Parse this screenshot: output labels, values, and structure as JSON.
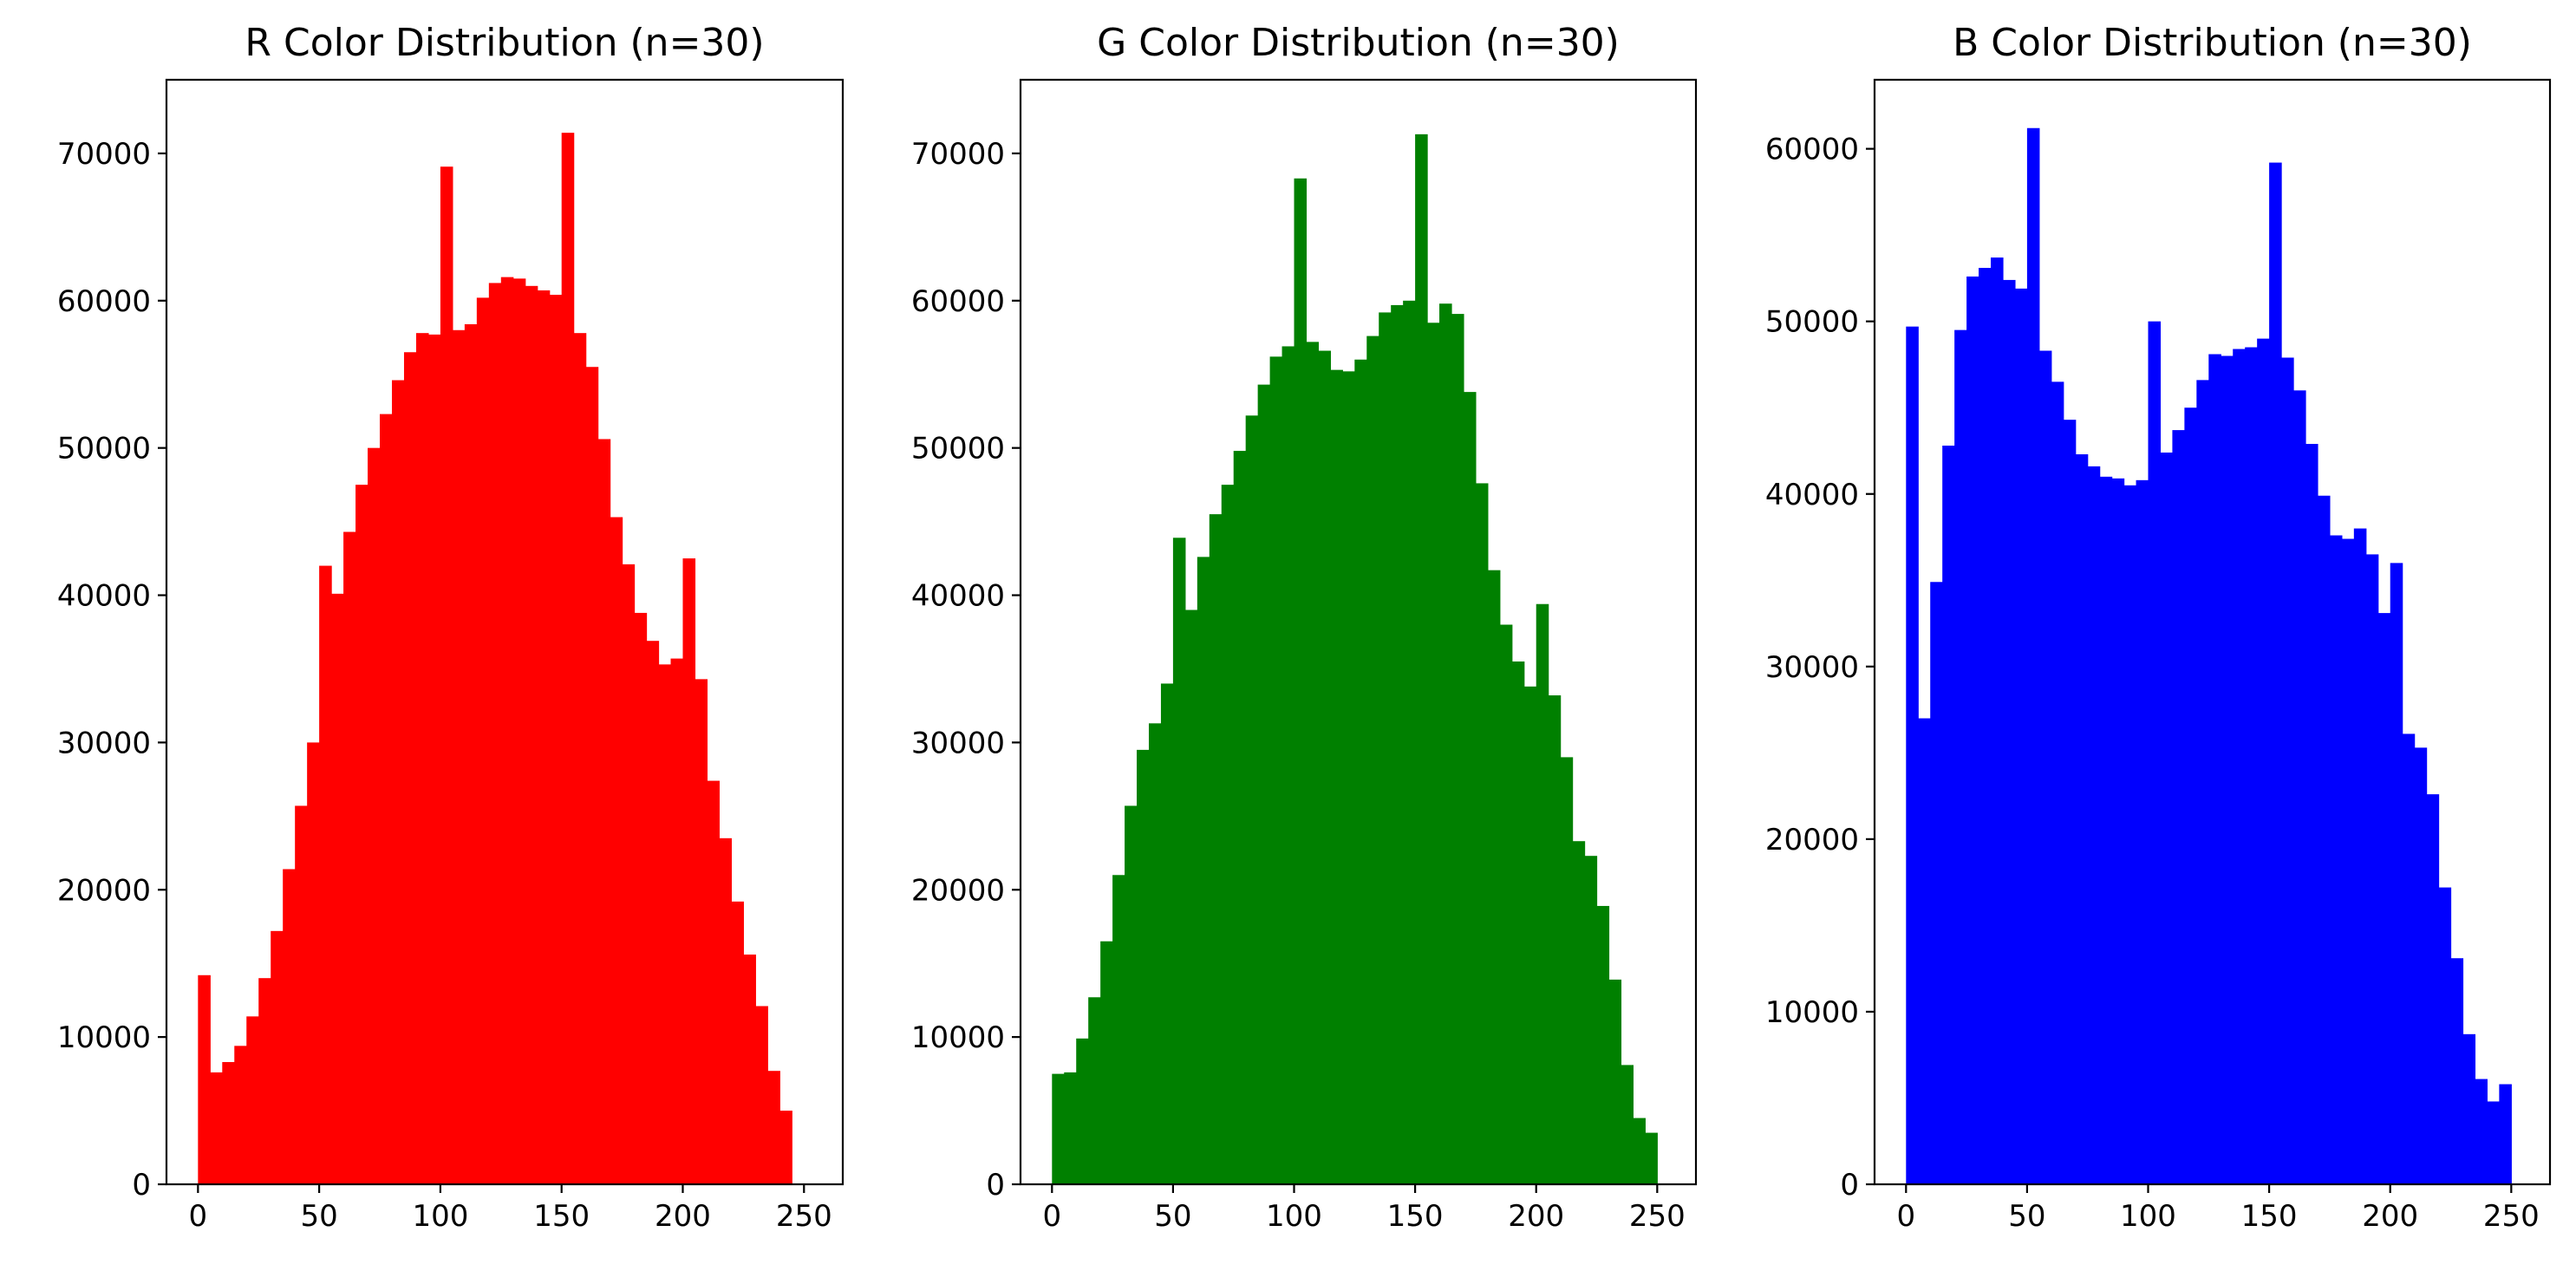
{
  "chart_data": [
    {
      "type": "bar",
      "title": "R Color Distribution (n=30)",
      "color": "#ff0000",
      "xlim": [
        -13,
        266
      ],
      "ylim": [
        0,
        75000
      ],
      "xticks": [
        0,
        50,
        100,
        150,
        200,
        250
      ],
      "yticks": [
        0,
        10000,
        20000,
        30000,
        40000,
        50000,
        60000,
        70000
      ],
      "bin_start": 0,
      "bin_width": 5,
      "values": [
        14200,
        7600,
        8300,
        9400,
        11400,
        14000,
        17200,
        21400,
        25700,
        30000,
        42000,
        40100,
        44300,
        47500,
        50000,
        52300,
        54600,
        56500,
        57800,
        57700,
        69100,
        58000,
        58400,
        60200,
        61200,
        61600,
        61500,
        61000,
        60700,
        60400,
        71400,
        57800,
        55500,
        50600,
        45300,
        42100,
        38800,
        36900,
        35300,
        35700,
        42500,
        34300,
        27400,
        23500,
        19200,
        15600,
        12100,
        7700,
        5000
      ]
    },
    {
      "type": "bar",
      "title": "G Color Distribution (n=30)",
      "color": "#008000",
      "xlim": [
        -13,
        266
      ],
      "ylim": [
        0,
        75000
      ],
      "xticks": [
        0,
        50,
        100,
        150,
        200,
        250
      ],
      "yticks": [
        0,
        10000,
        20000,
        30000,
        40000,
        50000,
        60000,
        70000
      ],
      "bin_start": 0,
      "bin_width": 5,
      "values": [
        7500,
        7600,
        9900,
        12700,
        16500,
        21000,
        25700,
        29500,
        31300,
        34000,
        43900,
        39000,
        42600,
        45500,
        47500,
        49800,
        52200,
        54300,
        56200,
        56900,
        68300,
        57200,
        56600,
        55300,
        55200,
        56000,
        57600,
        59200,
        59700,
        60000,
        71300,
        58500,
        59800,
        59100,
        53800,
        47600,
        41700,
        38000,
        35500,
        33800,
        39400,
        33200,
        29000,
        23300,
        22300,
        18900,
        13900,
        8100,
        4500,
        3500
      ]
    },
    {
      "type": "bar",
      "title": "B Color Distribution (n=30)",
      "color": "#0000ff",
      "xlim": [
        -13,
        266
      ],
      "ylim": [
        0,
        64000
      ],
      "xticks": [
        0,
        50,
        100,
        150,
        200,
        250
      ],
      "yticks": [
        0,
        10000,
        20000,
        30000,
        40000,
        50000,
        60000
      ],
      "bin_start": 0,
      "bin_width": 5,
      "values": [
        49700,
        27000,
        34900,
        42800,
        49500,
        52600,
        53100,
        53700,
        52400,
        51900,
        61200,
        48300,
        46500,
        44300,
        42300,
        41600,
        41000,
        40900,
        40500,
        40800,
        50000,
        42400,
        43700,
        45000,
        46600,
        48100,
        48000,
        48400,
        48500,
        49000,
        59200,
        47900,
        46000,
        42900,
        39900,
        37600,
        37400,
        38000,
        36500,
        33100,
        36000,
        26100,
        25300,
        22600,
        17200,
        13100,
        8700,
        6100,
        4800,
        5800
      ]
    }
  ]
}
